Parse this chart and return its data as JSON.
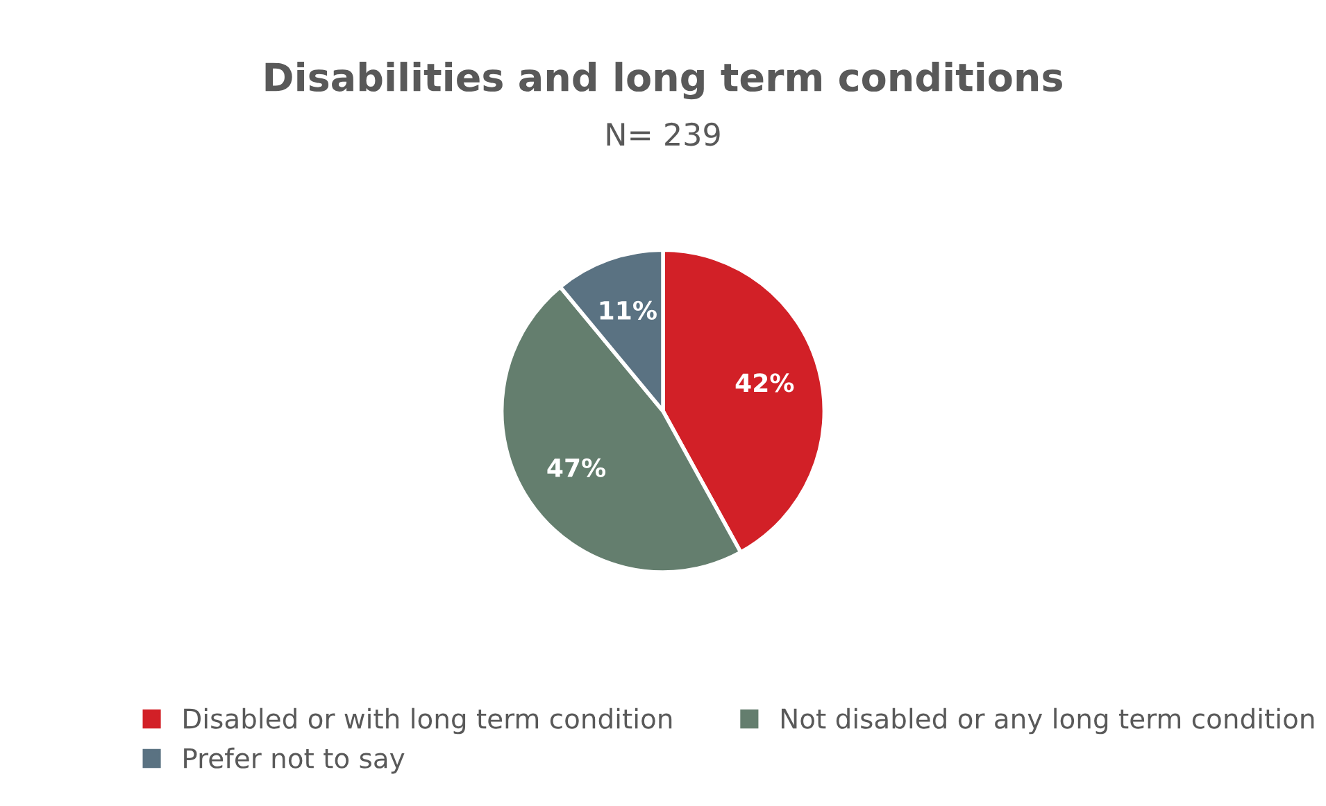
{
  "chart_data": {
    "type": "pie",
    "title": "Disabilities and long term conditions",
    "subtitle": "N= 239",
    "categories": [
      "Disabled or with long term condition",
      "Not disabled or any long term condition",
      "Prefer not to say"
    ],
    "values": [
      42,
      47,
      11
    ],
    "colors": [
      "#d22027",
      "#647e6e",
      "#5a7282"
    ],
    "value_labels": [
      "42%",
      "47%",
      "11%"
    ],
    "legend": "bottom"
  }
}
